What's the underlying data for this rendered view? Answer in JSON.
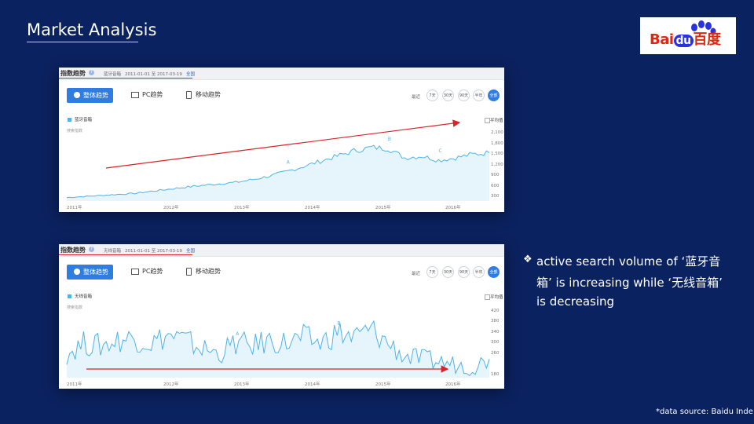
{
  "slide": {
    "title": "Market Analysis",
    "logo_text_pre": "Bai",
    "logo_text_du": "du",
    "logo_text_post": "百度",
    "bullet_line1": "active search volume of  ‘蓝牙音",
    "bullet_line2": "箱’  is increasing while  ‘无线音箱’",
    "bullet_line3": "is decreasing",
    "source_note": "*data source: Baidu Inde"
  },
  "colors": {
    "background": "#0b2260",
    "trend_line": "#4fb3e8",
    "trend_fill": "#e6f5fc",
    "arrow": "#d8232a",
    "accent": "#2f7de1"
  },
  "panels": [
    {
      "header_title": "指数趋势",
      "keyword": "蓝牙音箱",
      "date_range": "2011-01-01 至 2017-03-19",
      "region": "全国",
      "tabs": [
        "整体趋势",
        "PC趋势",
        "移动趋势"
      ],
      "range_label": "最近",
      "range_buttons": [
        "7天",
        "30天",
        "90天",
        "半年",
        "全部"
      ],
      "legend": "蓝牙音箱",
      "search_index_label": "搜索指数",
      "avg_label": "平均值",
      "y_ticks": [
        "2,100",
        "1,800",
        "1,500",
        "1,200",
        "900",
        "600",
        "300"
      ],
      "x_ticks": [
        "2011年",
        "2012年",
        "2013年",
        "2014年",
        "2015年",
        "2016年"
      ],
      "annotations": [
        "A",
        "B",
        "C"
      ],
      "chart_data": {
        "type": "area",
        "x": [
          "2011-01",
          "2011-04",
          "2011-07",
          "2011-10",
          "2012-01",
          "2012-04",
          "2012-07",
          "2012-10",
          "2013-01",
          "2013-04",
          "2013-07",
          "2013-10",
          "2014-01",
          "2014-04",
          "2014-07",
          "2014-10",
          "2015-01",
          "2015-04",
          "2015-07",
          "2015-10",
          "2016-01",
          "2016-04",
          "2016-07",
          "2016-10",
          "2017-01",
          "2017-03"
        ],
        "series": [
          {
            "name": "蓝牙音箱",
            "values": [
              300,
              330,
              360,
              390,
              420,
              480,
              540,
              600,
              650,
              700,
              740,
              820,
              920,
              1050,
              1200,
              1350,
              1500,
              1650,
              1750,
              1720,
              1450,
              1500,
              1380,
              1450,
              1550,
              1600
            ]
          }
        ],
        "ylim": [
          200,
          2200
        ],
        "trend_arrow": "increasing"
      }
    },
    {
      "header_title": "指数趋势",
      "keyword": "无线音箱",
      "date_range": "2011-01-01 至 2017-03-19",
      "region": "全国",
      "tabs": [
        "整体趋势",
        "PC趋势",
        "移动趋势"
      ],
      "range_label": "最近",
      "range_buttons": [
        "7天",
        "30天",
        "90天",
        "半年",
        "全部"
      ],
      "legend": "无线音箱",
      "search_index_label": "搜索指数",
      "avg_label": "平均值",
      "y_ticks": [
        "420",
        "380",
        "340",
        "300",
        "260",
        "180"
      ],
      "x_ticks": [
        "2011年",
        "2012年",
        "2013年",
        "2014年",
        "2015年",
        "2016年"
      ],
      "annotations": [
        "A",
        "B"
      ],
      "chart_data": {
        "type": "area",
        "x": [
          "2011-01",
          "2011-04",
          "2011-07",
          "2011-10",
          "2012-01",
          "2012-04",
          "2012-07",
          "2012-10",
          "2013-01",
          "2013-04",
          "2013-07",
          "2013-10",
          "2014-01",
          "2014-04",
          "2014-07",
          "2014-10",
          "2015-01",
          "2015-04",
          "2015-07",
          "2015-10",
          "2016-01",
          "2016-04",
          "2016-07",
          "2016-10",
          "2017-01",
          "2017-03"
        ],
        "series": [
          {
            "name": "无线音箱",
            "values": [
              260,
              300,
              290,
              310,
              320,
              300,
              330,
              310,
              280,
              260,
              300,
              290,
              310,
              300,
              320,
              300,
              340,
              320,
              350,
              300,
              250,
              240,
              230,
              220,
              210,
              240
            ]
          }
        ],
        "ylim": [
          170,
          430
        ],
        "trend_arrow": "flat"
      }
    }
  ]
}
